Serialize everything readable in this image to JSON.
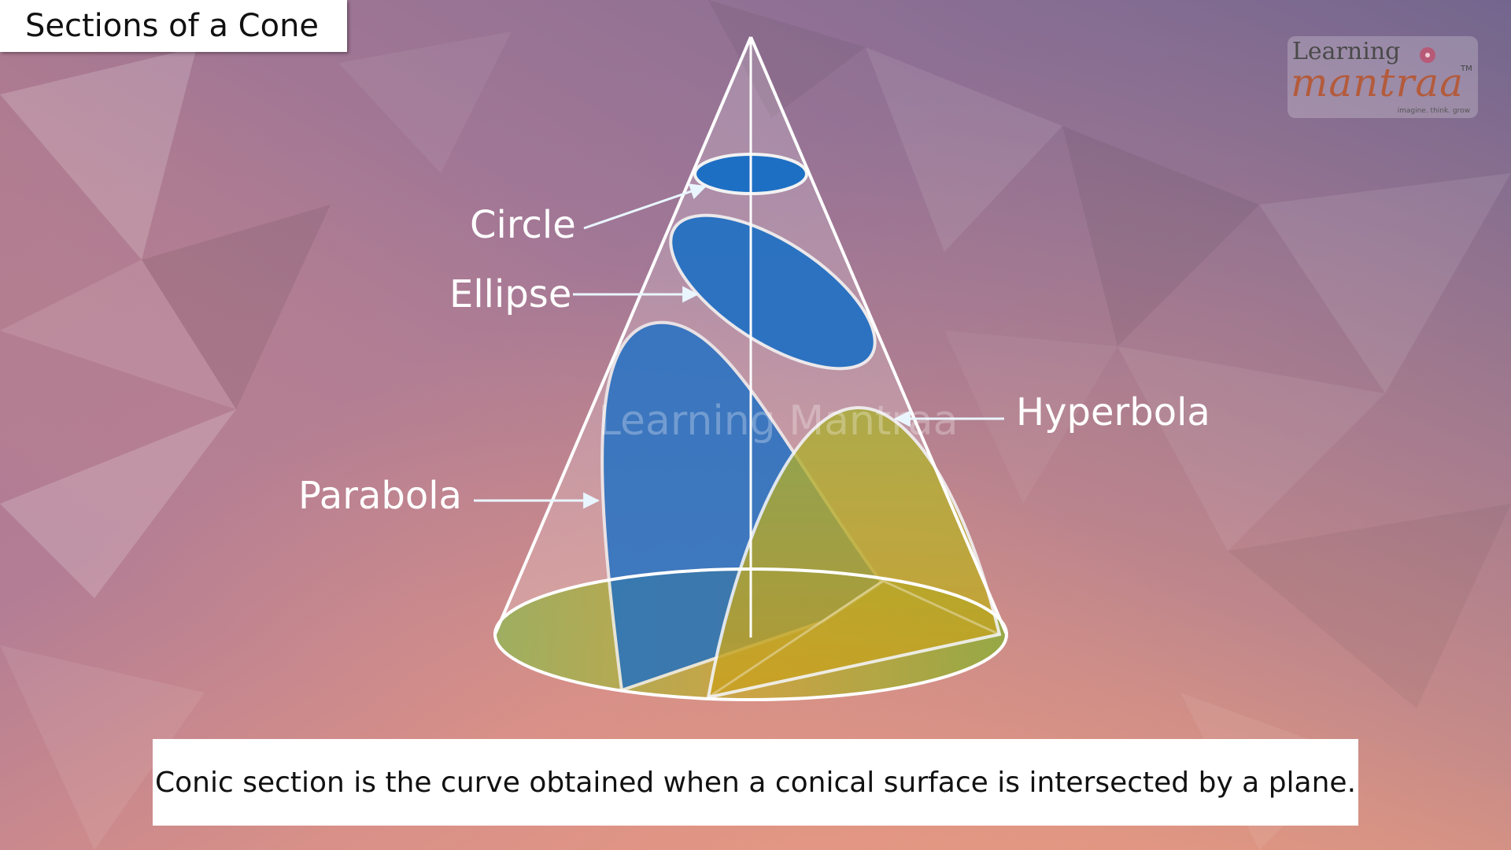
{
  "title": "Sections of a Cone",
  "logo": {
    "line1": "Learning",
    "line2": "mantraa",
    "tm": "TM",
    "tagline": "imagine. think. grow"
  },
  "watermark": "Learning Mantraa",
  "labels": {
    "circle": "Circle",
    "ellipse": "Ellipse",
    "parabola": "Parabola",
    "hyperbola": "Hyperbola"
  },
  "caption": "Conic section is the curve obtained when a conical surface is intersected by a plane.",
  "colors": {
    "section_blue": "#1d6fc4",
    "hyperbola_fill": "#9aa12c",
    "outline": "#f2f2f2",
    "arrow": "#e9f6ff"
  }
}
